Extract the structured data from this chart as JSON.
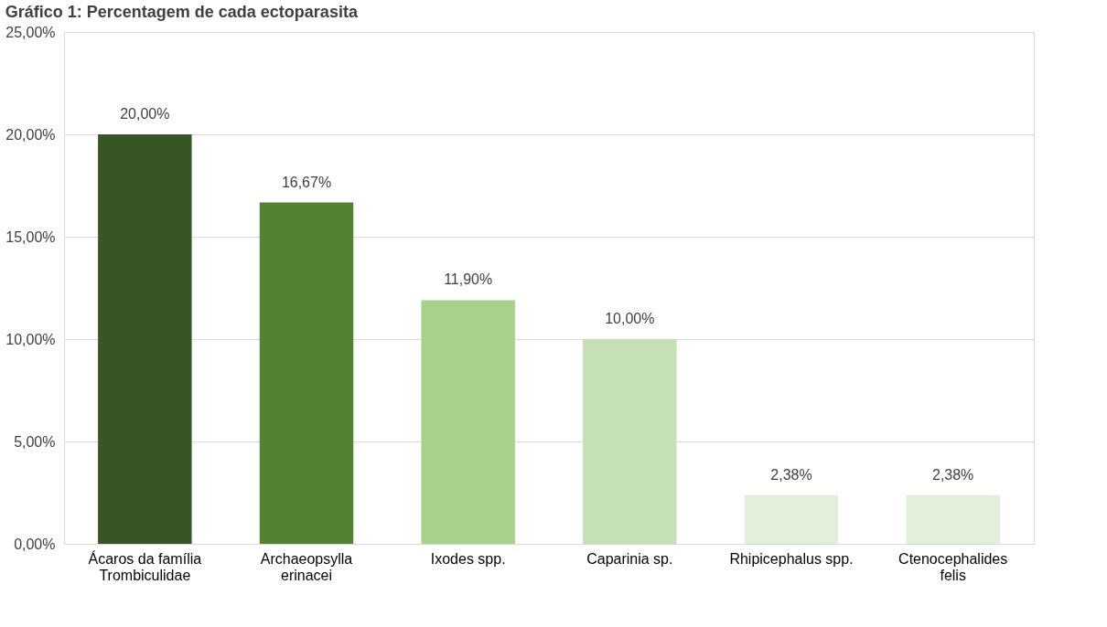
{
  "chart_data": {
    "type": "bar",
    "title": "Gráfico 1: Percentagem de cada ectoparasita",
    "categories": [
      "Ácaros da família Trombiculidae",
      "Archaeopsylla erinacei",
      "Ixodes spp.",
      "Caparinia sp.",
      "Rhipicephalus spp.",
      "Ctenocephalides felis"
    ],
    "values": [
      20.0,
      16.67,
      11.9,
      10.0,
      2.38,
      2.38
    ],
    "colors": [
      "#375623",
      "#548235",
      "#a9d18e",
      "#c5e0b4",
      "#e2efda",
      "#e2efda"
    ],
    "value_labels": [
      "20,00%",
      "16,67%",
      "11,90%",
      "10,00%",
      "2,38%",
      "2,38%"
    ],
    "ylim": [
      0,
      25
    ],
    "yticks": [
      {
        "value": 0,
        "label": "0,00%"
      },
      {
        "value": 5,
        "label": "5,00%"
      },
      {
        "value": 10,
        "label": "10,00%"
      },
      {
        "value": 15,
        "label": "15,00%"
      },
      {
        "value": 20,
        "label": "20,00%"
      },
      {
        "value": 25,
        "label": "25,00%"
      }
    ],
    "grid": "y"
  }
}
